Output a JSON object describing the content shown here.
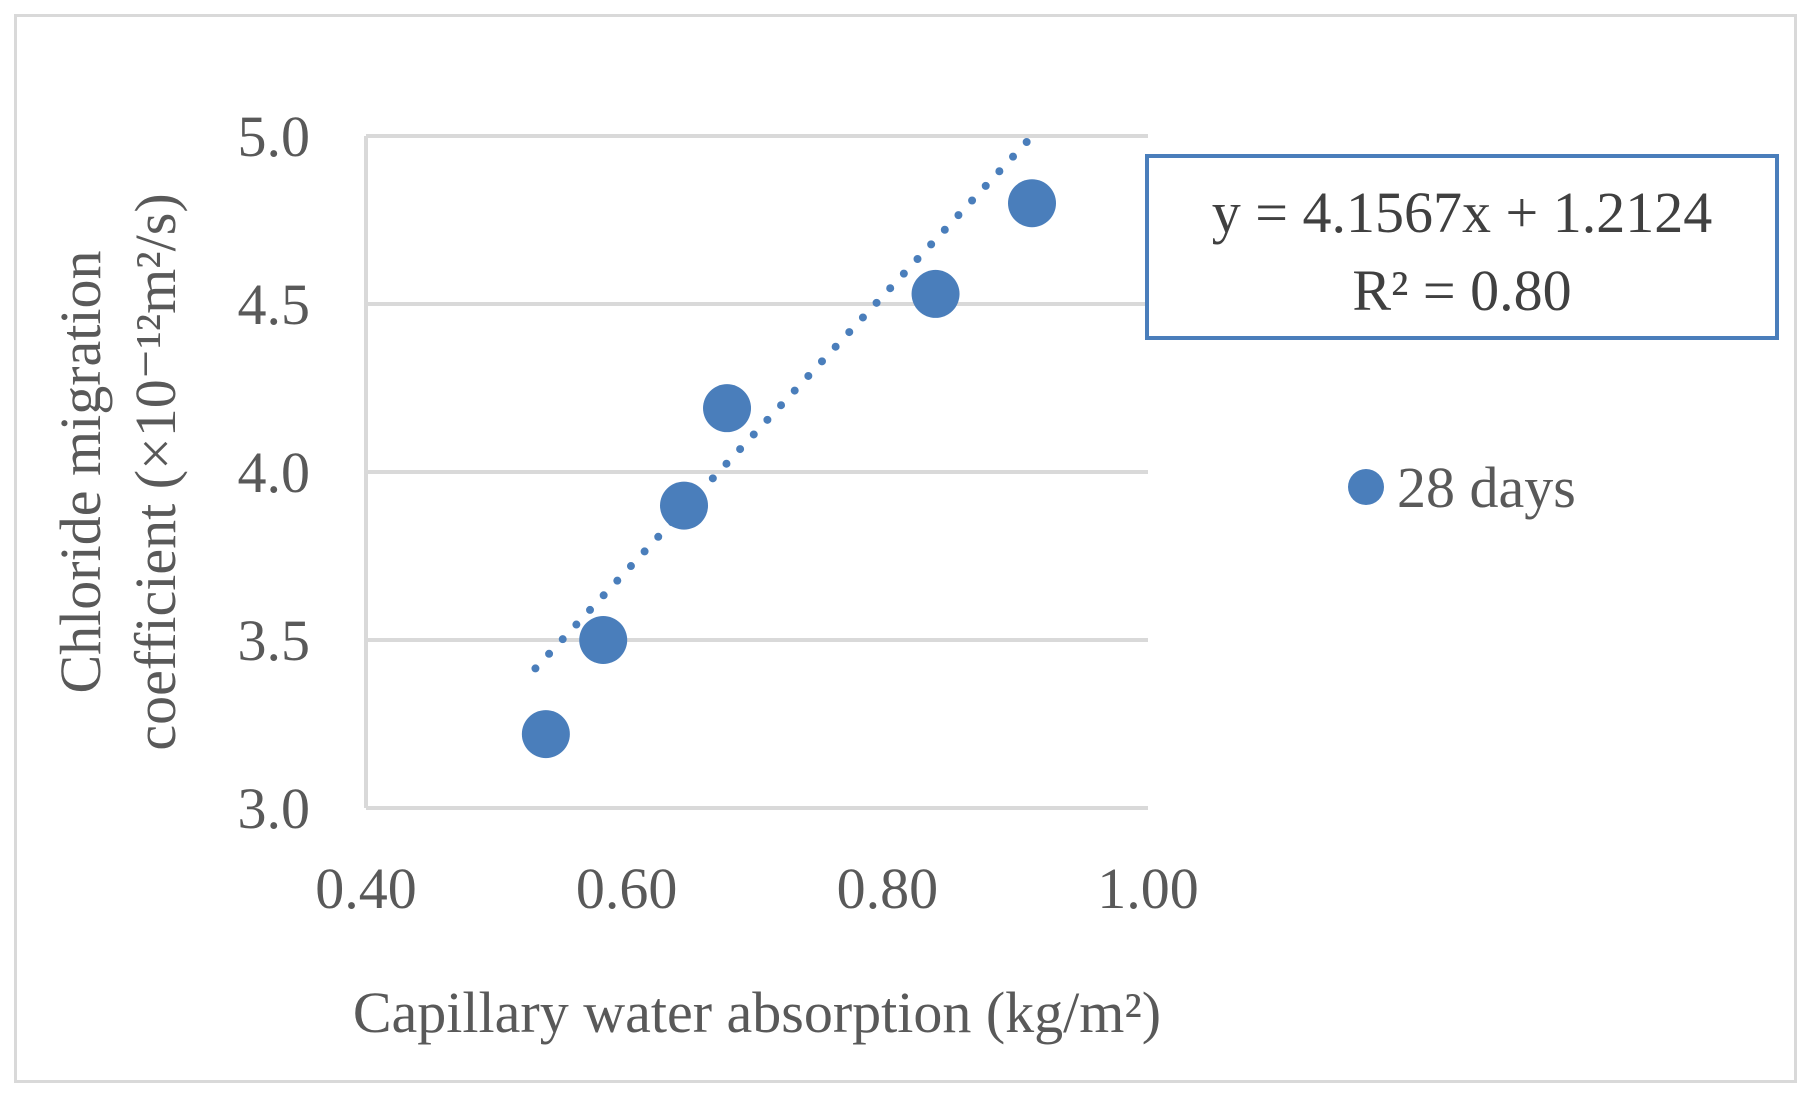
{
  "chart_data": {
    "type": "scatter",
    "title": "",
    "xlabel": "Capillary water absorption (kg/m²)",
    "ylabel_line1": "Chloride migration",
    "ylabel_line2": "coefficient (×10⁻¹²m²/s)",
    "xlim": [
      0.4,
      1.0
    ],
    "ylim": [
      3.0,
      5.0
    ],
    "x_ticks": [
      0.4,
      0.6,
      0.8,
      1.0
    ],
    "x_tick_labels": [
      "0.40",
      "0.60",
      "0.80",
      "1.00"
    ],
    "y_ticks": [
      3.0,
      3.5,
      4.0,
      4.5,
      5.0
    ],
    "y_tick_labels": [
      "3.0",
      "3.5",
      "4.0",
      "4.5",
      "5.0"
    ],
    "grid": "horizontal",
    "legend_position": "right",
    "series": [
      {
        "name": "28 days",
        "color": "#4a7ebb",
        "points": [
          {
            "x": 0.538,
            "y": 3.22
          },
          {
            "x": 0.582,
            "y": 3.5
          },
          {
            "x": 0.644,
            "y": 3.9
          },
          {
            "x": 0.677,
            "y": 4.19
          },
          {
            "x": 0.837,
            "y": 4.53
          },
          {
            "x": 0.911,
            "y": 4.8
          }
        ]
      }
    ],
    "trendline": {
      "type": "linear",
      "style": "dotted",
      "slope": 4.1567,
      "intercept": 1.2124,
      "x_range": [
        0.53,
        0.91
      ],
      "equation_text": "y = 4.1567x + 1.2124",
      "r2_text": "R² = 0.80",
      "box_border_color": "#4a7ebb"
    }
  }
}
